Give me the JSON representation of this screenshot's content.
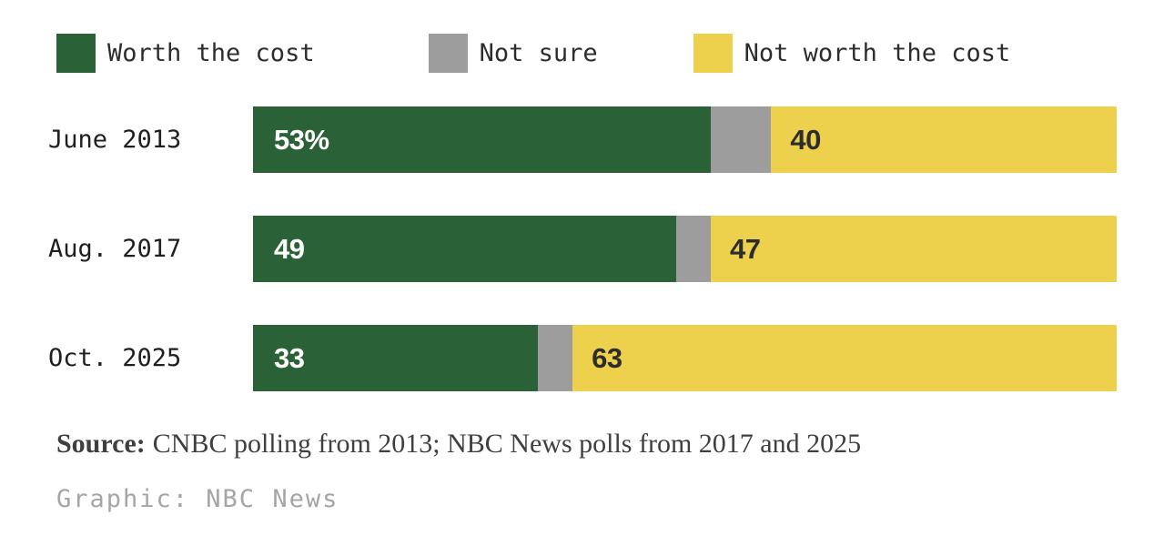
{
  "colors": {
    "worth_green": "#2b6137",
    "not_sure_gray": "#9d9d9d",
    "not_worth_yellow": "#edd04c",
    "value_text_on_green": "#ffffff",
    "value_text_on_yellow": "#2d2d2d",
    "label_text": "#1f1f1f",
    "source_text": "#3f3f3f",
    "credit_text": "#a5a5a5",
    "background": "#ffffff"
  },
  "legend": {
    "items": [
      {
        "label": "Worth the cost",
        "color": "#2b6137"
      },
      {
        "label": "Not sure",
        "color": "#9d9d9d"
      },
      {
        "label": "Not worth the cost",
        "color": "#edd04c"
      }
    ]
  },
  "chart_data": {
    "type": "bar",
    "orientation": "horizontal-stacked",
    "title": "",
    "xlabel": "",
    "ylabel": "",
    "xlim": [
      0,
      100
    ],
    "grid": false,
    "legend_position": "top",
    "categories": [
      "June 2013",
      "Aug. 2017",
      "Oct. 2025"
    ],
    "series": [
      {
        "name": "Worth the cost",
        "color": "#2b6137",
        "values": [
          53,
          49,
          33
        ]
      },
      {
        "name": "Not sure",
        "color": "#9d9d9d",
        "values": [
          7,
          4,
          4
        ]
      },
      {
        "name": "Not worth the cost",
        "color": "#edd04c",
        "values": [
          40,
          47,
          63
        ]
      }
    ],
    "rows": [
      {
        "category": "June 2013",
        "values": {
          "worth": 53,
          "not_sure": 7,
          "not_worth": 40
        },
        "labels": {
          "worth": "53%",
          "not_worth": "40"
        }
      },
      {
        "category": "Aug. 2017",
        "values": {
          "worth": 49,
          "not_sure": 4,
          "not_worth": 47
        },
        "labels": {
          "worth": "49",
          "not_worth": "47"
        }
      },
      {
        "category": "Oct. 2025",
        "values": {
          "worth": 33,
          "not_sure": 4,
          "not_worth": 63
        },
        "labels": {
          "worth": "33",
          "not_worth": "63"
        }
      }
    ]
  },
  "source": {
    "label": "Source:",
    "text": "CNBC polling from 2013; NBC News polls from 2017 and 2025"
  },
  "credit": "Graphic: NBC News"
}
